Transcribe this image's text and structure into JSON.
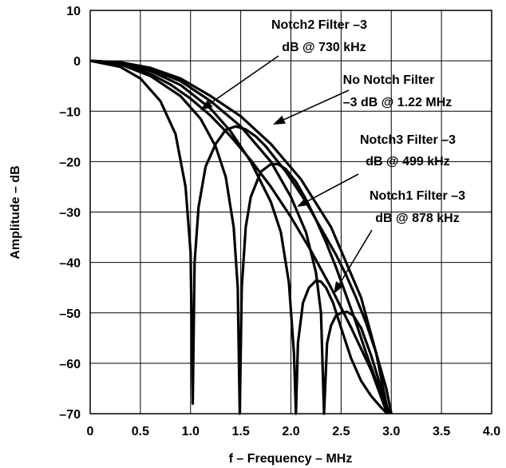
{
  "chart_data": {
    "type": "line",
    "title": "",
    "xlabel": "f – Frequency – MHz",
    "ylabel": "Amplitude – dB",
    "xlim": [
      0,
      4.0
    ],
    "ylim": [
      -70,
      10
    ],
    "x_ticks": [
      "0",
      "0.5",
      "1.0",
      "1.5",
      "2.0",
      "2.5",
      "3.0",
      "3.5",
      "4.0"
    ],
    "y_ticks": [
      "10",
      "0",
      "–10",
      "–20",
      "–30",
      "–40",
      "–50",
      "–60",
      "–70"
    ],
    "grid": true,
    "series": [
      {
        "x": [
          0,
          0.3,
          0.6,
          0.9,
          1.2,
          1.5,
          1.8,
          2.1,
          2.4,
          2.7,
          2.85,
          2.97
        ],
        "y": [
          0,
          -0.3,
          -1.4,
          -3.5,
          -7,
          -11,
          -16.5,
          -23.5,
          -33,
          -47,
          -58,
          -70
        ]
      },
      {
        "x": [
          0,
          0.3,
          0.6,
          0.8,
          1.0,
          1.2,
          1.4,
          1.6,
          1.8,
          2.0,
          2.2,
          2.4,
          2.6,
          2.8,
          2.96
        ],
        "y": [
          0,
          -0.6,
          -2.6,
          -4.7,
          -7.5,
          -10.9,
          -15,
          -19.7,
          -25,
          -31,
          -37.7,
          -45,
          -52.9,
          -61.4,
          -70
        ]
      },
      {
        "x": [
          0,
          0.3,
          0.5,
          0.7,
          0.85,
          0.95,
          1.0,
          1.022,
          1.04,
          1.08,
          1.15,
          1.25,
          1.35,
          1.45,
          1.55,
          1.65,
          1.75,
          1.85,
          1.95,
          2.05,
          2.15,
          2.25,
          2.35,
          2.45,
          2.55,
          2.65,
          2.75,
          2.85,
          2.95,
          3.0
        ],
        "y": [
          0,
          -1.2,
          -3.5,
          -8,
          -14.5,
          -25,
          -38,
          -68,
          -40,
          -29,
          -21,
          -16.5,
          -13.7,
          -13,
          -13.6,
          -15,
          -17,
          -19.5,
          -22,
          -25,
          -28,
          -31.5,
          -35,
          -38.5,
          -42.5,
          -47,
          -52,
          -58,
          -65,
          -70
        ]
      },
      {
        "x": [
          0,
          0.3,
          0.6,
          0.9,
          1.1,
          1.25,
          1.35,
          1.43,
          1.47,
          1.49,
          1.51,
          1.55,
          1.6,
          1.7,
          1.8,
          1.87,
          1.95,
          2.05,
          2.15,
          2.25,
          2.35,
          2.45,
          2.55,
          2.65,
          2.75,
          2.85,
          2.95,
          2.97
        ],
        "y": [
          0,
          -0.7,
          -3,
          -7,
          -11.5,
          -17,
          -23,
          -33,
          -45,
          -70,
          -45,
          -33,
          -27,
          -22,
          -20.5,
          -20.5,
          -21.5,
          -24,
          -27.5,
          -31.5,
          -36,
          -41,
          -46.5,
          -52,
          -58,
          -63.5,
          -69,
          -70
        ]
      },
      {
        "x": [
          0,
          0.3,
          0.6,
          0.9,
          1.2,
          1.4,
          1.6,
          1.8,
          1.9,
          1.98,
          2.03,
          2.05,
          2.07,
          2.12,
          2.18,
          2.25,
          2.3,
          2.35,
          2.42,
          2.5,
          2.6,
          2.7,
          2.8,
          2.9,
          2.96
        ],
        "y": [
          0,
          -0.5,
          -2,
          -4.8,
          -9.5,
          -14,
          -20,
          -28,
          -34,
          -44,
          -58,
          -70,
          -56,
          -48,
          -45,
          -43.6,
          -43.8,
          -45,
          -48,
          -53,
          -59,
          -63.5,
          -66.5,
          -68.8,
          -70
        ]
      },
      {
        "x": [
          0,
          0.3,
          0.6,
          0.9,
          1.2,
          1.5,
          1.8,
          2.0,
          2.15,
          2.25,
          2.3,
          2.33,
          2.36,
          2.4,
          2.45,
          2.5,
          2.56,
          2.62,
          2.7,
          2.8,
          2.9,
          2.98
        ],
        "y": [
          0,
          -0.4,
          -1.7,
          -4,
          -8,
          -13,
          -20,
          -27,
          -34,
          -42,
          -50,
          -70,
          -56,
          -52.5,
          -50.5,
          -50,
          -49.8,
          -50.5,
          -53,
          -58.5,
          -65,
          -70
        ]
      }
    ],
    "annotations": [
      {
        "lines": [
          "Notch2 Filter –3",
          "dB @ 730 kHz"
        ]
      },
      {
        "lines": [
          "No Notch Filter",
          "–3 dB @ 1.22 MHz"
        ]
      },
      {
        "lines": [
          "Notch3 Filter –3",
          "dB @ 499 kHz"
        ]
      },
      {
        "lines": [
          "Notch1 Filter –3",
          "dB @ 878 kHz"
        ]
      }
    ]
  }
}
